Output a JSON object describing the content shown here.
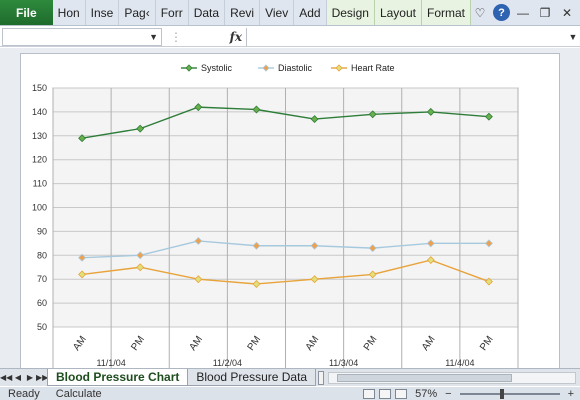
{
  "ribbon": {
    "file_label": "File",
    "tabs": [
      "Hon",
      "Inse",
      "Pag‹",
      "Forr",
      "Data",
      "Revi",
      "Viev",
      "Add"
    ],
    "context_tabs": [
      "Design",
      "Layout",
      "Format"
    ],
    "help_label": "?"
  },
  "formula_bar": {
    "name_box_value": "",
    "fx_label": "fx",
    "formula_value": ""
  },
  "chart_data": {
    "type": "line",
    "title": "",
    "xlabel": "",
    "ylabel": "",
    "ylim": [
      50,
      150
    ],
    "yticks": [
      50,
      60,
      70,
      80,
      90,
      100,
      110,
      120,
      130,
      140,
      150
    ],
    "grid": true,
    "legend_position": "top",
    "categories": [
      "AM",
      "PM",
      "AM",
      "PM",
      "AM",
      "PM",
      "AM",
      "PM"
    ],
    "group_labels": [
      "11/1/04",
      "11/2/04",
      "11/3/04",
      "11/4/04"
    ],
    "series": [
      {
        "name": "Systolic",
        "color": "#2e7d3a",
        "values": [
          129,
          133,
          142,
          141,
          137,
          139,
          140,
          138
        ]
      },
      {
        "name": "Diastolic",
        "color": "#a7c9de",
        "values": [
          79,
          80,
          86,
          84,
          84,
          83,
          85,
          85
        ]
      },
      {
        "name": "Heart Rate",
        "color": "#e8a33a",
        "values": [
          72,
          75,
          70,
          68,
          70,
          72,
          78,
          69
        ]
      }
    ],
    "marker_colors": {
      "Systolic": "#6ab04c",
      "Diastolic": "#f0a04b",
      "Heart Rate": "#e2e07a"
    }
  },
  "sheet_tabs": {
    "active": "Blood Pressure Chart",
    "other": "Blood Pressure Data"
  },
  "status": {
    "ready": "Ready",
    "calculate": "Calculate",
    "zoom": "57%",
    "zoom_minus": "−",
    "zoom_plus": "+"
  }
}
